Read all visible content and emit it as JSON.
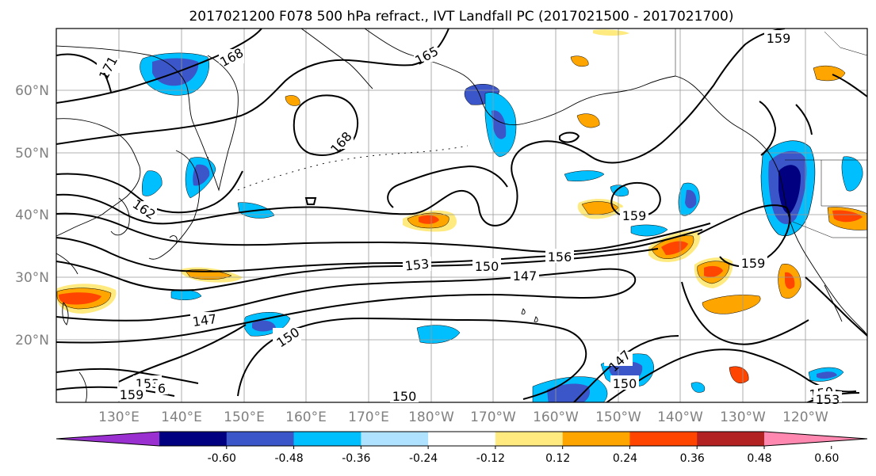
{
  "title": "2017021200 F078 500 hPa refract., IVT Landfall PC (2017021500 - 2017021700)",
  "lat_labels": [
    "60°N",
    "50°N",
    "40°N",
    "30°N",
    "20°N"
  ],
  "lon_labels": [
    "130°E",
    "140°E",
    "150°E",
    "160°E",
    "170°E",
    "180°W",
    "170°W",
    "160°W",
    "150°W",
    "140°W",
    "130°W",
    "120°W"
  ],
  "contour_labels": [
    "171",
    "168",
    "165",
    "159",
    "168",
    "162",
    "159",
    "156",
    "153",
    "150",
    "147",
    "159",
    "147",
    "150",
    "147",
    "150",
    "150",
    "153",
    "159",
    "6",
    "150",
    "153"
  ],
  "colorbar": {
    "tick_labels": [
      "-0.60",
      "-0.48",
      "-0.36",
      "-0.24",
      "-0.12",
      "0.12",
      "0.24",
      "0.36",
      "0.48",
      "0.60"
    ],
    "colors": [
      "#9b30d0",
      "#000080",
      "#3a56c8",
      "#00bfff",
      "#aee2ff",
      "#ffffff",
      "#ffea80",
      "#ffa500",
      "#ff4500",
      "#b22222",
      "#ff88b0"
    ]
  },
  "palette": {
    "land_outline": "#000000",
    "grid": "#999999",
    "contour": "#000000",
    "label_gray": "#808080"
  }
}
